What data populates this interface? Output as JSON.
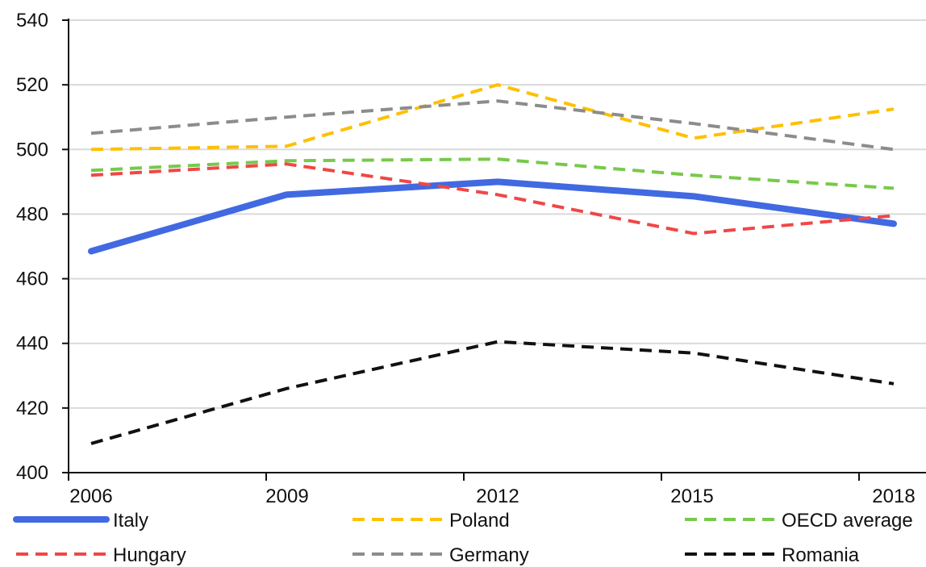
{
  "chart_data": {
    "type": "line",
    "title": "",
    "xlabel": "",
    "ylabel": "",
    "x": [
      "2006",
      "2009",
      "2012",
      "2015",
      "2018"
    ],
    "ylim": [
      400,
      540
    ],
    "yticks": [
      400,
      420,
      440,
      460,
      480,
      500,
      520,
      540
    ],
    "grid": "horizontal",
    "legend_position": "bottom",
    "series": [
      {
        "name": "Italy",
        "values": [
          468.5,
          486,
          490,
          485.5,
          477
        ],
        "color": "#4169E1",
        "style": "solid"
      },
      {
        "name": "Poland",
        "values": [
          500,
          501,
          520,
          503.5,
          512.5
        ],
        "color": "#FFC000",
        "style": "dashed"
      },
      {
        "name": "OECD average",
        "values": [
          493.5,
          496.5,
          497,
          492,
          488
        ],
        "color": "#77C94B",
        "style": "dashed"
      },
      {
        "name": "Hungary",
        "values": [
          492,
          495.5,
          486,
          474,
          479.5
        ],
        "color": "#F04747",
        "style": "dashed"
      },
      {
        "name": "Germany",
        "values": [
          505,
          510,
          515,
          508,
          500
        ],
        "color": "#8C8C8C",
        "style": "dashed"
      },
      {
        "name": "Romania",
        "values": [
          409,
          426,
          440.5,
          437,
          427.5
        ],
        "color": "#111111",
        "style": "dashed"
      }
    ]
  }
}
